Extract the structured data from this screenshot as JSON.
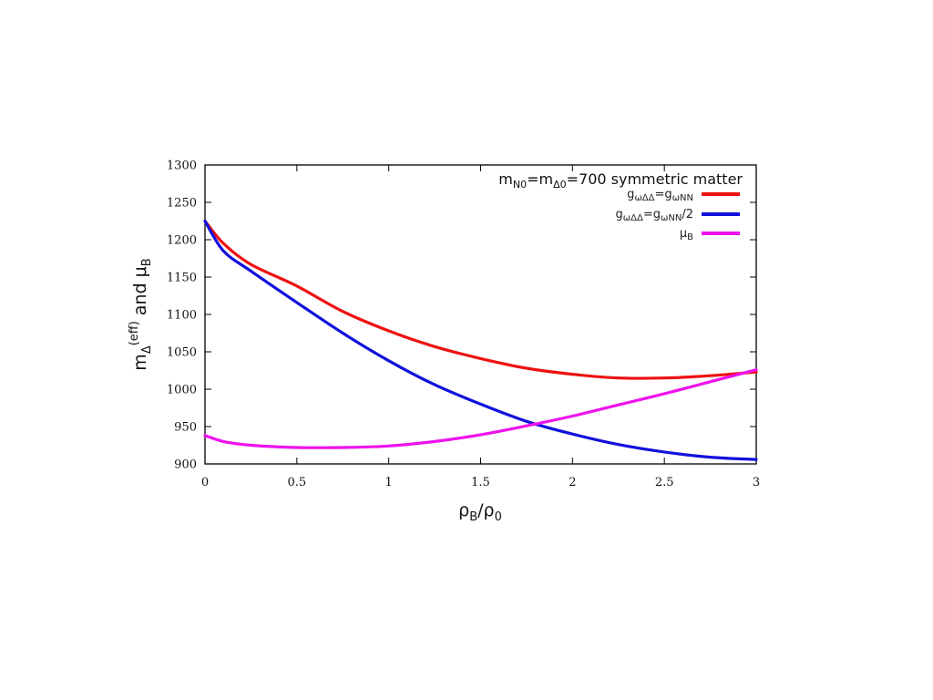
{
  "chart_data": {
    "type": "line",
    "title_parts": {
      "m1": "m",
      "s1": "N0",
      "eq1": "=m",
      "s2": "Δ0",
      "rest": "=700 symmetric matter"
    },
    "xlabel_parts": {
      "a": "ρ",
      "as": "B",
      "slash": "/ρ",
      "bs": "0"
    },
    "ylabel_parts": {
      "m": "m",
      "sub": "Δ",
      "sup": "(eff)",
      "and": " and μ",
      "sub2": "B"
    },
    "xlim": [
      0,
      3
    ],
    "ylim": [
      900,
      1300
    ],
    "xticks": [
      0,
      0.5,
      1,
      1.5,
      2,
      2.5,
      3
    ],
    "xtick_labels": [
      "0",
      "0.5",
      "1",
      "1.5",
      "2",
      "2.5",
      "3"
    ],
    "yticks": [
      900,
      950,
      1000,
      1050,
      1100,
      1150,
      1200,
      1250,
      1300
    ],
    "ytick_labels": [
      "900",
      "950",
      "1000",
      "1050",
      "1100",
      "1150",
      "1200",
      "1250",
      "1300"
    ],
    "grid": false,
    "legend_position": "top-right",
    "series": [
      {
        "legend_parts": {
          "g1": "g",
          "s1": "ωΔΔ",
          "eq": "=g",
          "s2": "ωNN",
          "tail": ""
        },
        "color": "#ee1111",
        "x": [
          0,
          0.1,
          0.25,
          0.5,
          0.75,
          1,
          1.25,
          1.5,
          1.75,
          2,
          2.25,
          2.5,
          2.75,
          3
        ],
        "y": [
          1225,
          1195,
          1167,
          1138,
          1104,
          1078,
          1057,
          1041,
          1028,
          1020,
          1015,
          1015,
          1018,
          1023
        ]
      },
      {
        "legend_parts": {
          "g1": "g",
          "s1": "ωΔΔ",
          "eq": "=g",
          "s2": "ωNN",
          "tail": "/2"
        },
        "color": "#1111dd",
        "x": [
          0,
          0.1,
          0.25,
          0.5,
          0.75,
          1,
          1.25,
          1.5,
          1.75,
          2,
          2.25,
          2.5,
          2.75,
          3
        ],
        "y": [
          1225,
          1185,
          1158,
          1116,
          1075,
          1038,
          1006,
          980,
          957,
          940,
          926,
          916,
          909,
          906
        ]
      },
      {
        "legend_parts": {
          "g1": "μ",
          "s1": "B",
          "eq": "",
          "s2": "",
          "tail": ""
        },
        "color": "#ee11ee",
        "x": [
          0,
          0.1,
          0.25,
          0.5,
          0.75,
          1,
          1.25,
          1.5,
          1.75,
          2,
          2.25,
          2.5,
          2.75,
          3
        ],
        "y": [
          938,
          930,
          925,
          922,
          922,
          924,
          930,
          939,
          951,
          964,
          979,
          994,
          1010,
          1026
        ]
      }
    ]
  }
}
